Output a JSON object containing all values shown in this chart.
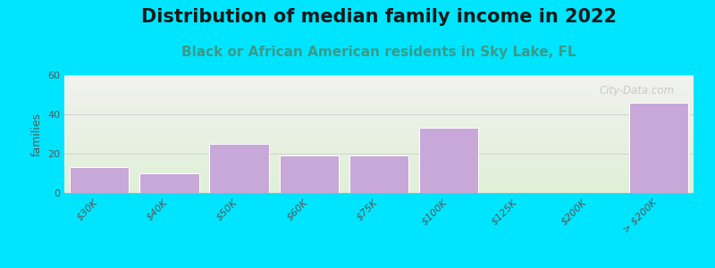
{
  "title": "Distribution of median family income in 2022",
  "subtitle": "Black or African American residents in Sky Lake, FL",
  "ylabel": "families",
  "categories": [
    "$30K",
    "$40K",
    "$50K",
    "$60K",
    "$75K",
    "$100K",
    "$125K",
    "$200K",
    "> $200K"
  ],
  "bar_values": [
    13,
    10,
    25,
    19,
    19,
    33,
    0,
    0,
    46
  ],
  "ylim": [
    0,
    60
  ],
  "yticks": [
    0,
    20,
    40,
    60
  ],
  "bar_color": "#c8a8d8",
  "bar_edge_color": "#ffffff",
  "background_outer": "#00e5ff",
  "grad_top_color": "#f2f2ee",
  "grad_bottom_color": "#dff0d8",
  "title_color": "#1a1a1a",
  "subtitle_color": "#3a9a8a",
  "title_fontsize": 15,
  "subtitle_fontsize": 11,
  "tick_fontsize": 8,
  "watermark": "City-Data.com",
  "watermark_color": "#b8b8b8"
}
